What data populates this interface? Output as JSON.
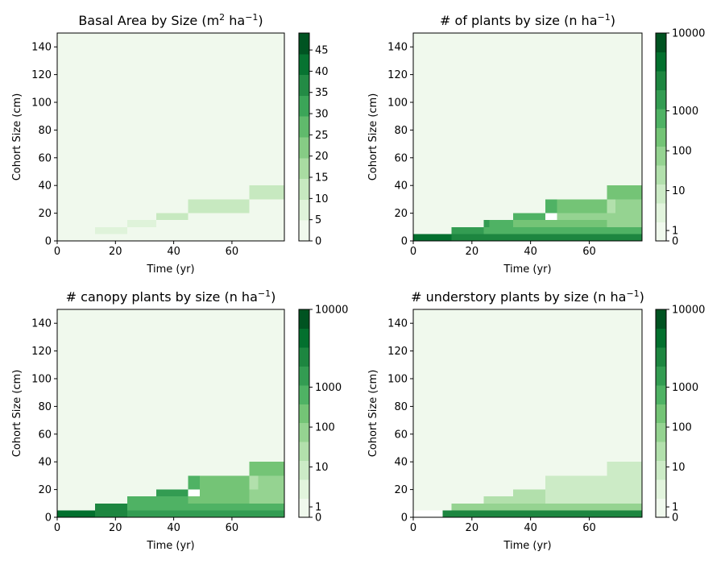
{
  "chart_data": [
    {
      "type": "heatmap",
      "title": "Basal Area by Size (m² ha⁻¹)",
      "title_main": "Basal Area by Size (m",
      "title_sup1": "2",
      "title_mid": " ha",
      "title_sup2": "−1",
      "title_end": ")",
      "xlabel": "Time (yr)",
      "ylabel": "Cohort Size (cm)",
      "xlim": [
        0,
        78
      ],
      "ylim": [
        0,
        150
      ],
      "x_ticks": [
        "0",
        "20",
        "40",
        "60"
      ],
      "y_ticks": [
        "0",
        "20",
        "40",
        "60",
        "80",
        "100",
        "120",
        "140"
      ],
      "colorbar": {
        "scale": "linear",
        "range": [
          0,
          49
        ],
        "tick_values": [
          0,
          5,
          10,
          15,
          20,
          25,
          30,
          35,
          40,
          45
        ],
        "tick_labels": [
          "0",
          "5",
          "10",
          "15",
          "20",
          "25",
          "30",
          "35",
          "40",
          "45"
        ]
      },
      "cells": [
        {
          "x": [
            0,
            78
          ],
          "y": [
            0,
            150
          ],
          "value": 0.3
        },
        {
          "x": [
            5,
            13
          ],
          "y": [
            0,
            5
          ],
          "value": 4
        },
        {
          "x": [
            13,
            24
          ],
          "y": [
            5,
            10
          ],
          "value": 6
        },
        {
          "x": [
            24,
            34
          ],
          "y": [
            10,
            15
          ],
          "value": 9
        },
        {
          "x": [
            34,
            45
          ],
          "y": [
            15,
            20
          ],
          "value": 10
        },
        {
          "x": [
            45,
            60
          ],
          "y": [
            20,
            30
          ],
          "value": 12
        },
        {
          "x": [
            60,
            66
          ],
          "y": [
            20,
            30
          ],
          "value": 10
        },
        {
          "x": [
            66,
            78
          ],
          "y": [
            30,
            40
          ],
          "value": 11
        },
        {
          "x": [
            45,
            66
          ],
          "y": [
            10,
            20
          ],
          "value": 2
        },
        {
          "x": [
            66,
            78
          ],
          "y": [
            10,
            30
          ],
          "value": 1.5
        },
        {
          "x": [
            20,
            78
          ],
          "y": [
            0,
            5
          ],
          "value": 1.5
        }
      ]
    },
    {
      "type": "heatmap",
      "title": "# of plants by size (n ha⁻¹)",
      "title_main": "# of plants by size (n ha",
      "title_sup1": "−1",
      "title_end": ")",
      "xlabel": "Time (yr)",
      "ylabel": "Cohort Size (cm)",
      "xlim": [
        0,
        78
      ],
      "ylim": [
        0,
        150
      ],
      "x_ticks": [
        "0",
        "20",
        "40",
        "60"
      ],
      "y_ticks": [
        "0",
        "20",
        "40",
        "60",
        "80",
        "100",
        "120",
        "140"
      ],
      "colorbar": {
        "scale": "log",
        "tick_labels": [
          "0",
          "1",
          "10",
          "100",
          "1000",
          "10000"
        ]
      },
      "cells": [
        {
          "x": [
            0,
            78
          ],
          "y": [
            0,
            150
          ],
          "value": 0.5
        },
        {
          "x": [
            0,
            13
          ],
          "y": [
            0,
            5
          ],
          "value": 10000
        },
        {
          "x": [
            13,
            24
          ],
          "y": [
            0,
            5
          ],
          "value": 6000
        },
        {
          "x": [
            24,
            78
          ],
          "y": [
            0,
            5
          ],
          "value": 5000
        },
        {
          "x": [
            13,
            24
          ],
          "y": [
            5,
            10
          ],
          "value": 3000
        },
        {
          "x": [
            24,
            78
          ],
          "y": [
            5,
            10
          ],
          "value": 400
        },
        {
          "x": [
            24,
            26
          ],
          "y": [
            10,
            15
          ],
          "value": 2000
        },
        {
          "x": [
            26,
            34
          ],
          "y": [
            10,
            15
          ],
          "value": 600
        },
        {
          "x": [
            34,
            45
          ],
          "y": [
            15,
            20
          ],
          "value": 400
        },
        {
          "x": [
            34,
            45
          ],
          "y": [
            10,
            15
          ],
          "value": 200
        },
        {
          "x": [
            45,
            66
          ],
          "y": [
            10,
            20
          ],
          "value": 150
        },
        {
          "x": [
            49,
            66
          ],
          "y": [
            15,
            20
          ],
          "value": 60
        },
        {
          "x": [
            45,
            49
          ],
          "y": [
            20,
            30
          ],
          "value": 400
        },
        {
          "x": [
            49,
            66
          ],
          "y": [
            20,
            30
          ],
          "value": 200
        },
        {
          "x": [
            45,
            49
          ],
          "y": [
            15,
            20
          ],
          "value": 0
        },
        {
          "x": [
            66,
            78
          ],
          "y": [
            30,
            40
          ],
          "value": 200
        },
        {
          "x": [
            66,
            78
          ],
          "y": [
            10,
            30
          ],
          "value": 60
        },
        {
          "x": [
            66,
            69
          ],
          "y": [
            20,
            30
          ],
          "value": 20
        }
      ]
    },
    {
      "type": "heatmap",
      "title": "# canopy plants by size (n ha⁻¹)",
      "title_main": "# canopy plants by size (n ha",
      "title_sup1": "−1",
      "title_end": ")",
      "xlabel": "Time (yr)",
      "ylabel": "Cohort Size (cm)",
      "xlim": [
        0,
        78
      ],
      "ylim": [
        0,
        150
      ],
      "x_ticks": [
        "0",
        "20",
        "40",
        "60"
      ],
      "y_ticks": [
        "0",
        "20",
        "40",
        "60",
        "80",
        "100",
        "120",
        "140"
      ],
      "colorbar": {
        "scale": "log",
        "tick_labels": [
          "0",
          "1",
          "10",
          "100",
          "1000",
          "10000"
        ]
      },
      "cells": [
        {
          "x": [
            0,
            78
          ],
          "y": [
            0,
            150
          ],
          "value": 0.5
        },
        {
          "x": [
            0,
            13
          ],
          "y": [
            0,
            5
          ],
          "value": 10000
        },
        {
          "x": [
            13,
            24
          ],
          "y": [
            0,
            10
          ],
          "value": 5000
        },
        {
          "x": [
            24,
            78
          ],
          "y": [
            0,
            5
          ],
          "value": 1500
        },
        {
          "x": [
            24,
            78
          ],
          "y": [
            5,
            10
          ],
          "value": 300
        },
        {
          "x": [
            24,
            34
          ],
          "y": [
            10,
            15
          ],
          "value": 800
        },
        {
          "x": [
            34,
            45
          ],
          "y": [
            15,
            20
          ],
          "value": 1000
        },
        {
          "x": [
            34,
            45
          ],
          "y": [
            10,
            15
          ],
          "value": 300
        },
        {
          "x": [
            45,
            66
          ],
          "y": [
            10,
            20
          ],
          "value": 150
        },
        {
          "x": [
            45,
            49
          ],
          "y": [
            20,
            30
          ],
          "value": 400
        },
        {
          "x": [
            49,
            66
          ],
          "y": [
            20,
            30
          ],
          "value": 200
        },
        {
          "x": [
            45,
            49
          ],
          "y": [
            15,
            20
          ],
          "value": 0
        },
        {
          "x": [
            66,
            78
          ],
          "y": [
            30,
            40
          ],
          "value": 200
        },
        {
          "x": [
            66,
            78
          ],
          "y": [
            10,
            30
          ],
          "value": 60
        },
        {
          "x": [
            66,
            69
          ],
          "y": [
            20,
            30
          ],
          "value": 20
        }
      ]
    },
    {
      "type": "heatmap",
      "title": "# understory plants by size (n ha⁻¹)",
      "title_main": "# understory plants by size (n ha",
      "title_sup1": "−1",
      "title_end": ")",
      "xlabel": "Time (yr)",
      "ylabel": "Cohort Size (cm)",
      "xlim": [
        0,
        78
      ],
      "ylim": [
        0,
        150
      ],
      "x_ticks": [
        "0",
        "20",
        "40",
        "60"
      ],
      "y_ticks": [
        "0",
        "20",
        "40",
        "60",
        "80",
        "100",
        "120",
        "140"
      ],
      "colorbar": {
        "scale": "log",
        "tick_labels": [
          "0",
          "1",
          "10",
          "100",
          "1000",
          "10000"
        ]
      },
      "cells": [
        {
          "x": [
            0,
            78
          ],
          "y": [
            0,
            150
          ],
          "value": 0.5
        },
        {
          "x": [
            0,
            10
          ],
          "y": [
            0,
            5
          ],
          "value": 0
        },
        {
          "x": [
            10,
            13
          ],
          "y": [
            0,
            5
          ],
          "value": 8000
        },
        {
          "x": [
            13,
            78
          ],
          "y": [
            0,
            5
          ],
          "value": 4000
        },
        {
          "x": [
            13,
            24
          ],
          "y": [
            5,
            10
          ],
          "value": 80
        },
        {
          "x": [
            24,
            78
          ],
          "y": [
            5,
            10
          ],
          "value": 40
        },
        {
          "x": [
            24,
            34
          ],
          "y": [
            10,
            15
          ],
          "value": 20
        },
        {
          "x": [
            34,
            45
          ],
          "y": [
            10,
            20
          ],
          "value": 12
        },
        {
          "x": [
            45,
            66
          ],
          "y": [
            10,
            30
          ],
          "value": 8
        },
        {
          "x": [
            66,
            78
          ],
          "y": [
            10,
            40
          ],
          "value": 3
        }
      ]
    }
  ]
}
